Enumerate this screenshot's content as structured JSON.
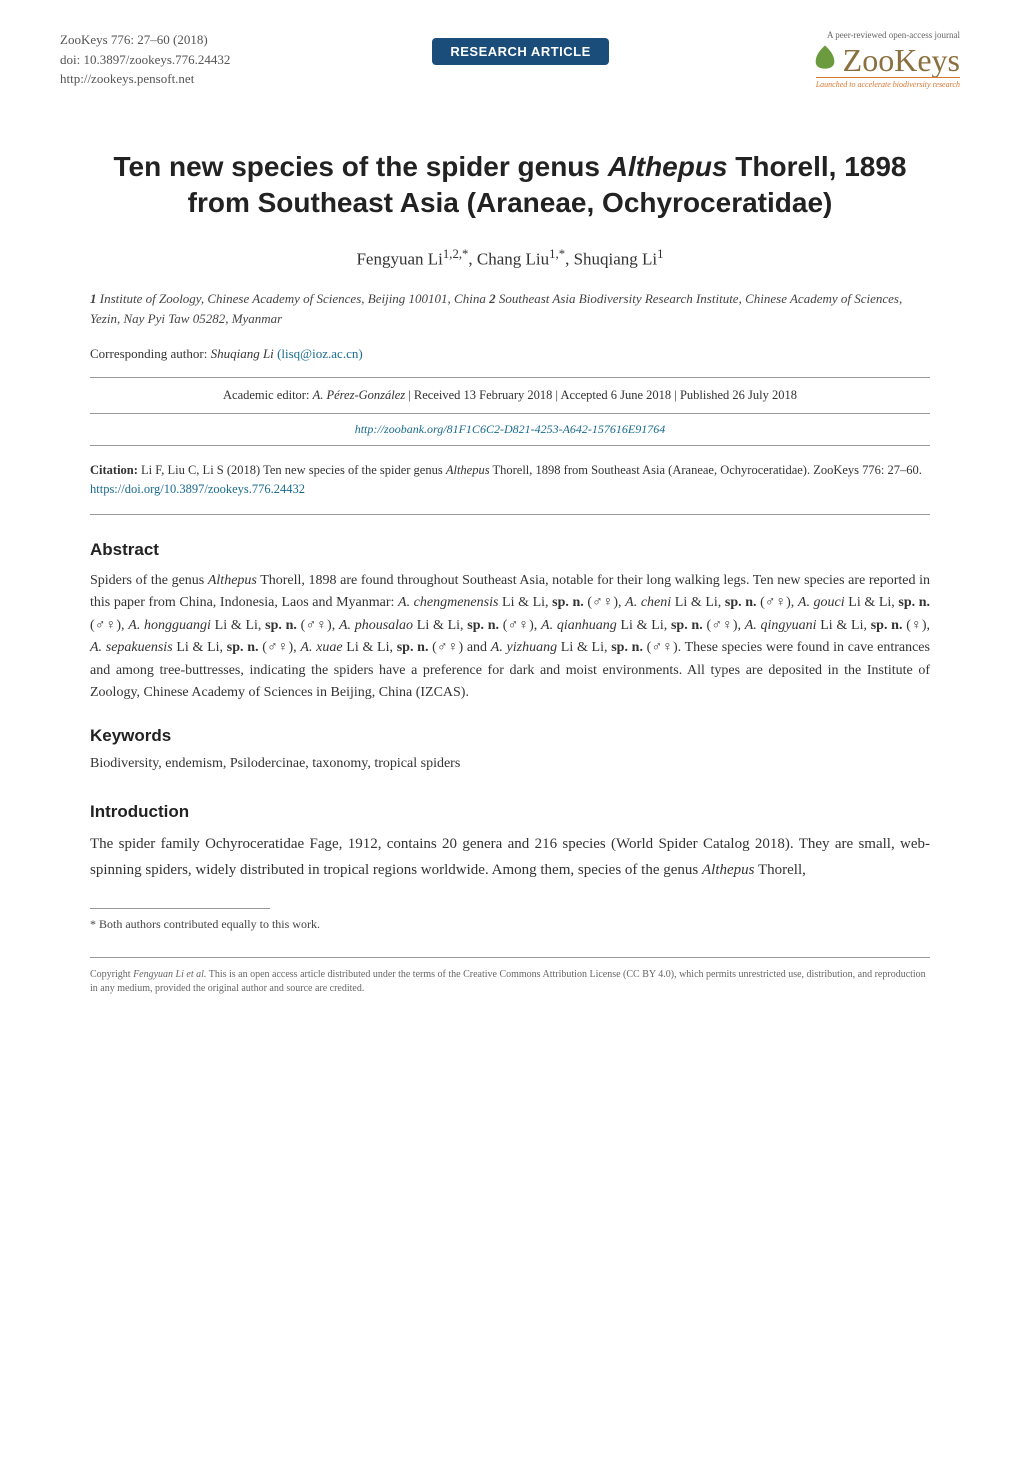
{
  "journal": {
    "name": "ZooKeys 776: 27–60 (2018)",
    "doi": "doi: 10.3897/zookeys.776.24432",
    "url": "http://zookeys.pensoft.net",
    "badge": "RESEARCH ARTICLE",
    "logo_top": "A peer-reviewed open-access journal",
    "logo_text": "ZooKeys",
    "logo_tagline": "Launched to accelerate biodiversity research"
  },
  "title_html": "Ten new species of the spider genus <em>Althepus</em> Thorell, 1898 from Southeast Asia (Araneae, Ochyroceratidae)",
  "authors_html": "Fengyuan Li<sup>1,2,*</sup>, Chang Liu<sup>1,*</sup>, Shuqiang Li<sup>1</sup>",
  "affiliations_html": "<b>1</b> <em>Institute of Zoology, Chinese Academy of Sciences, Beijing 100101, China</em> <b>2</b> <em>Southeast Asia Biodiversity Research Institute, Chinese Academy of Sciences, Yezin, Nay Pyi Taw 05282, Myanmar</em>",
  "corresponding_label": "Corresponding author:",
  "corresponding_name": "Shuqiang Li",
  "corresponding_email": "(lisq@ioz.ac.cn)",
  "editorial_html": "Academic editor: <em>A. Pérez-González</em>  |  Received 13 February 2018  |  Accepted 6 June 2018  |  Published 26 July 2018",
  "zoobank": "http://zoobank.org/81F1C6C2-D821-4253-A642-157616E91764",
  "citation_html": "<b>Citation:</b> Li F, Liu C, Li S (2018) Ten new species of the spider genus <em>Althepus</em> Thorell, 1898 from Southeast Asia (Araneae, Ochyroceratidae). ZooKeys 776: 27–60. <span class=\"citation-link\">https://doi.org/10.3897/zookeys.776.24432</span>",
  "abstract": {
    "heading": "Abstract",
    "text_html": "Spiders of the genus <em>Althepus</em> Thorell, 1898 are found throughout Southeast Asia, notable for their long walking legs. Ten new species are reported in this paper from China, Indonesia, Laos and Myanmar: <em>A. chengmenensis</em> Li & Li, <b>sp. n.</b> (♂♀), <em>A. cheni</em> Li & Li, <b>sp. n.</b> (♂♀), <em>A. gouci</em> Li & Li, <b>sp. n.</b> (♂♀), <em>A. hongguangi</em> Li & Li, <b>sp. n.</b> (♂♀), <em>A. phousalao</em> Li & Li, <b>sp. n.</b> (♂♀), <em>A. qianhuang</em> Li & Li, <b>sp. n.</b> (♂♀), <em>A. qingyuani</em> Li & Li, <b>sp. n.</b> (♀), <em>A. sepakuensis</em> Li & Li, <b>sp. n.</b> (♂♀), <em>A. xuae</em> Li & Li, <b>sp. n.</b> (♂♀) and <em>A. yizhuang</em> Li & Li, <b>sp. n.</b> (♂♀). These species were found in cave entrances and among tree-buttresses, indicating the spiders have a preference for dark and moist environments. All types are deposited in the Institute of Zoology, Chinese Academy of Sciences in Beijing, China (IZCAS)."
  },
  "keywords": {
    "heading": "Keywords",
    "text": "Biodiversity, endemism, Psilodercinae, taxonomy, tropical spiders"
  },
  "introduction": {
    "heading": "Introduction",
    "text_html": "The spider family Ochyroceratidae Fage, 1912, contains 20 genera and 216 species (World Spider Catalog 2018). They are small, web-spinning spiders, widely distributed in tropical regions worldwide. Among them, species of the genus <em>Althepus</em> Thorell,"
  },
  "footnote": "*   Both authors contributed equally to this work.",
  "copyright_html": "Copyright <em>Fengyuan Li et al.</em> This is an open access article distributed under the terms of the Creative Commons Attribution License (CC BY 4.0), which permits unrestricted use, distribution, and reproduction in any medium, provided the original author and source are credited.",
  "colors": {
    "badge_bg": "#1a4d7a",
    "link": "#1a6b8f",
    "leaf": "#6b9b3e",
    "logo_text": "#8b6f3e",
    "tagline": "#d97730"
  }
}
